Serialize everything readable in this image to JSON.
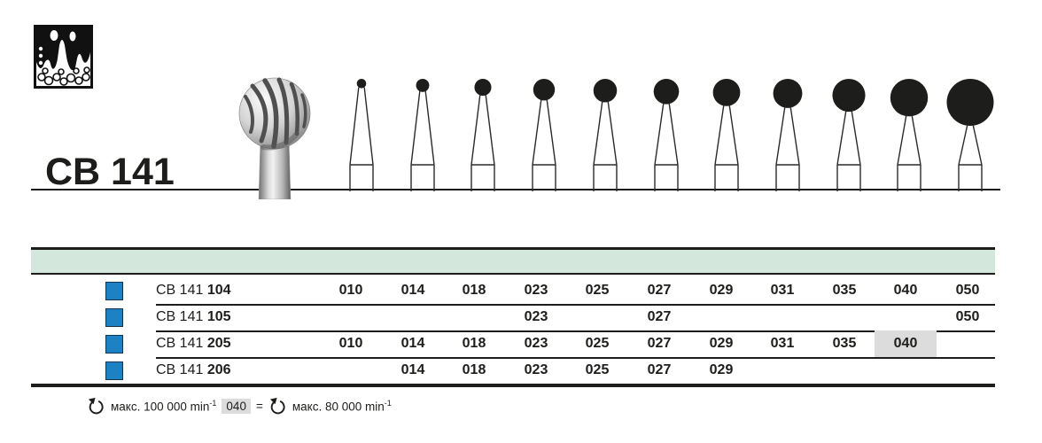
{
  "header": {
    "title": "CB 141"
  },
  "diagram": {
    "sizes": [
      "010",
      "014",
      "018",
      "023",
      "025",
      "027",
      "029",
      "031",
      "035",
      "040",
      "050"
    ]
  },
  "table": {
    "band_color": "#d4e7dc",
    "marker_color": "#1d82c4",
    "marker_border": "#16334f",
    "highlight_color": "#dcdcdc",
    "rows": [
      {
        "series": "CB 141",
        "code": "104",
        "values": [
          "010",
          "014",
          "018",
          "023",
          "025",
          "027",
          "029",
          "031",
          "035",
          "040",
          "050"
        ],
        "highlight": ""
      },
      {
        "series": "CB 141",
        "code": "105",
        "values": [
          "",
          "",
          "",
          "023",
          "",
          "027",
          "",
          "",
          "",
          "",
          "050"
        ],
        "highlight": ""
      },
      {
        "series": "CB 141",
        "code": "205",
        "values": [
          "010",
          "014",
          "018",
          "023",
          "025",
          "027",
          "029",
          "031",
          "035",
          "040",
          ""
        ],
        "highlight": "040"
      },
      {
        "series": "CB 141",
        "code": "206",
        "values": [
          "",
          "014",
          "018",
          "023",
          "025",
          "027",
          "029",
          "",
          "",
          "",
          ""
        ],
        "highlight": ""
      }
    ]
  },
  "footer": {
    "max_speed_text": "макс. 100 000 min",
    "max_speed_sup": "-1",
    "exception_code": "040",
    "equals_sign": "=",
    "exception_speed_text": "макс. 80 000 min",
    "exception_speed_sup": "-1"
  }
}
